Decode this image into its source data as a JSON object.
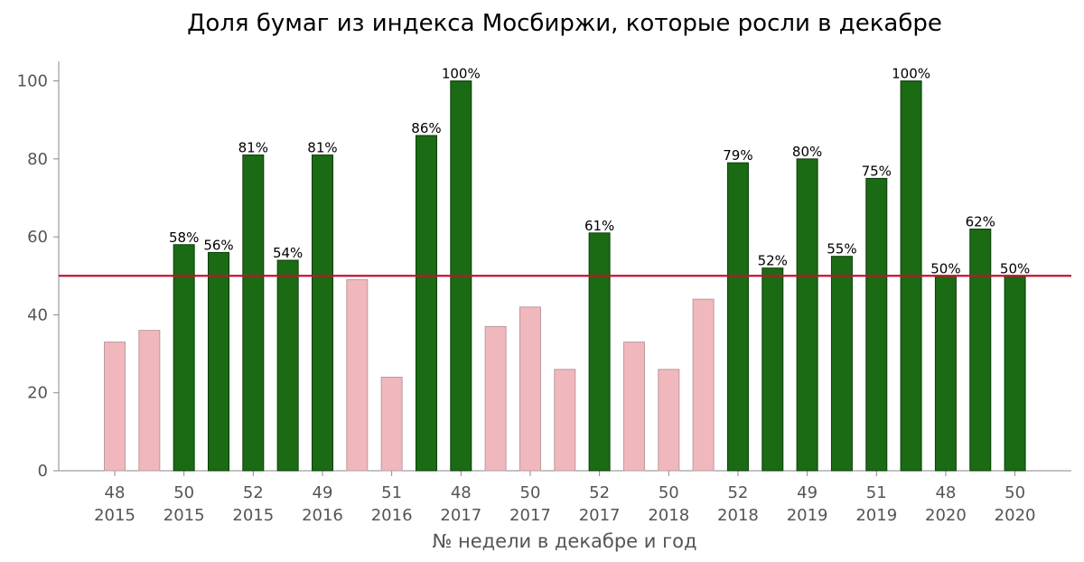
{
  "chart_data": {
    "type": "bar",
    "title": "Доля бумаг из индекса Мосбиржи, которые росли в декабре",
    "xlabel": "№ недели в декабре и год",
    "ylabel": "",
    "ylim": [
      0,
      105
    ],
    "yticks": [
      0,
      20,
      40,
      60,
      80,
      100
    ],
    "reference_line": {
      "y": 50,
      "color": "#c8102e"
    },
    "colors": {
      "up": "#1a6b14",
      "up_edge": "#0d3d0a",
      "down": "#f0b8bd",
      "down_edge": "#b89a9d"
    },
    "values": [
      33,
      36,
      58,
      56,
      81,
      54,
      81,
      49,
      24,
      86,
      100,
      37,
      42,
      26,
      61,
      33,
      26,
      44,
      79,
      52,
      80,
      55,
      75,
      100,
      50,
      62,
      50
    ],
    "data_labels": [
      "",
      "",
      "58%",
      "56%",
      "81%",
      "54%",
      "81%",
      "",
      "",
      "86%",
      "100%",
      "",
      "",
      "",
      "61%",
      "",
      "",
      "",
      "79%",
      "52%",
      "80%",
      "55%",
      "75%",
      "100%",
      "50%",
      "62%",
      "50%"
    ],
    "xtick_labels": [
      {
        "index": 0,
        "week": "48",
        "year": "2015"
      },
      {
        "index": 2,
        "week": "50",
        "year": "2015"
      },
      {
        "index": 4,
        "week": "52",
        "year": "2015"
      },
      {
        "index": 6,
        "week": "49",
        "year": "2016"
      },
      {
        "index": 8,
        "week": "51",
        "year": "2016"
      },
      {
        "index": 10,
        "week": "48",
        "year": "2017"
      },
      {
        "index": 12,
        "week": "50",
        "year": "2017"
      },
      {
        "index": 14,
        "week": "52",
        "year": "2017"
      },
      {
        "index": 16,
        "week": "50",
        "year": "2018"
      },
      {
        "index": 18,
        "week": "52",
        "year": "2018"
      },
      {
        "index": 20,
        "week": "49",
        "year": "2019"
      },
      {
        "index": 22,
        "week": "51",
        "year": "2019"
      },
      {
        "index": 24,
        "week": "48",
        "year": "2020"
      },
      {
        "index": 26,
        "week": "50",
        "year": "2020"
      }
    ],
    "grid": false,
    "legend": "none"
  }
}
